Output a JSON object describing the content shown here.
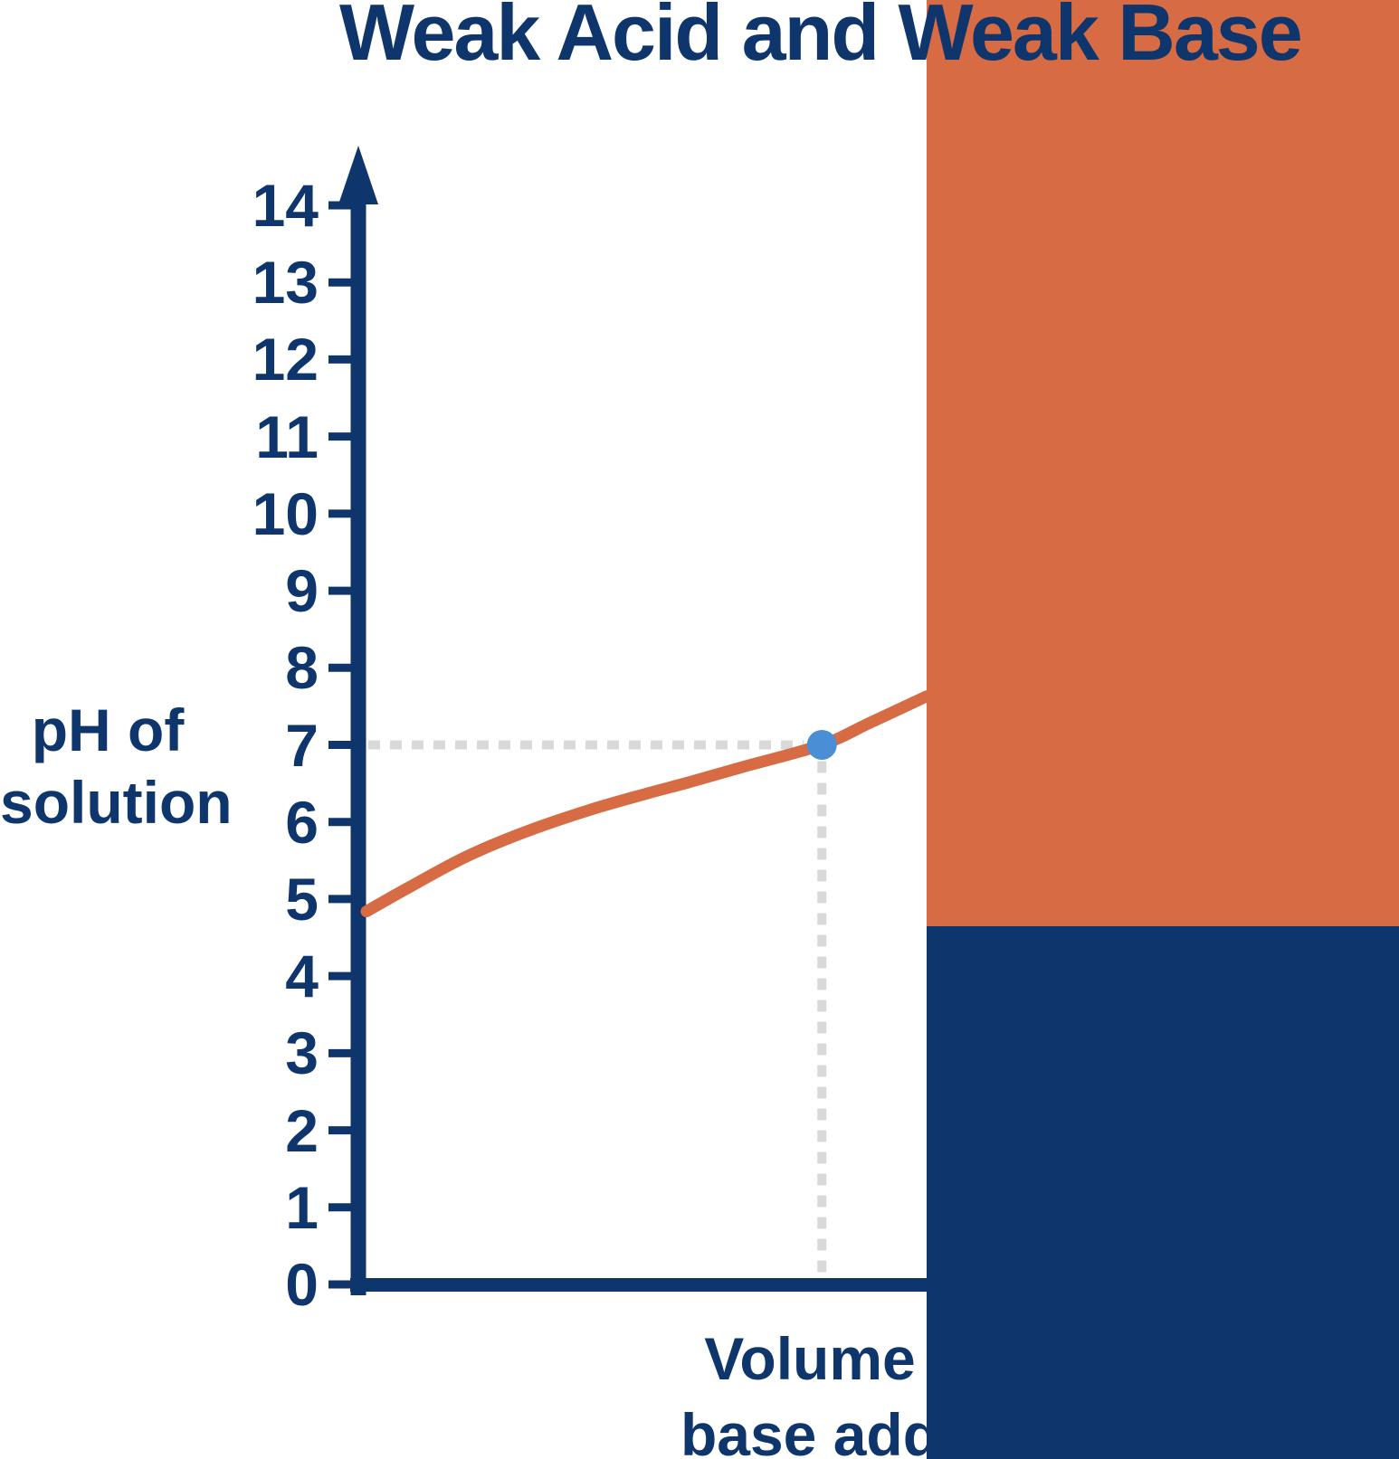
{
  "title": "Weak Acid and Weak Base",
  "colors": {
    "navy": "#0e366d",
    "orange": "#d76b44",
    "curve_orange": "#d76b44",
    "dot_blue": "#4a8fd6",
    "dash_gray": "#d9d9d9",
    "background": "#ffffff"
  },
  "y_axis": {
    "label_lines": [
      "pH of",
      "solution"
    ]
  },
  "x_axis": {
    "visible_label_lines": [
      "Volume",
      "base add"
    ]
  },
  "chart_data": {
    "type": "line",
    "title": "Weak Acid and Weak Base",
    "ylabel_lines": [
      "pH of",
      "solution"
    ],
    "xlabel_visible_lines": [
      "Volume",
      "base add"
    ],
    "ylim": [
      0,
      14
    ],
    "y_ticks": [
      14,
      13,
      12,
      11,
      10,
      9,
      8,
      7,
      6,
      5,
      4,
      3,
      2,
      1,
      0
    ],
    "x_ticks": [],
    "grid": false,
    "legend": "none",
    "series": [
      {
        "name": "titration-curve",
        "color": "#d76b44",
        "x_fraction": [
          0,
          0.073,
          0.178,
          0.283,
          0.396,
          0.501,
          0.573,
          0.67,
          0.813,
          0.897,
          1.0
        ],
        "pH": [
          4.84,
          5.14,
          5.55,
          5.87,
          6.15,
          6.37,
          6.51,
          6.71,
          7.0,
          7.28,
          7.63
        ]
      }
    ],
    "equivalence_point": {
      "x_fraction": 0.813,
      "pH": 7.0,
      "marker": "blue-dot",
      "guides": "dashed gray lines to y-axis value 7 and to x-axis"
    }
  }
}
